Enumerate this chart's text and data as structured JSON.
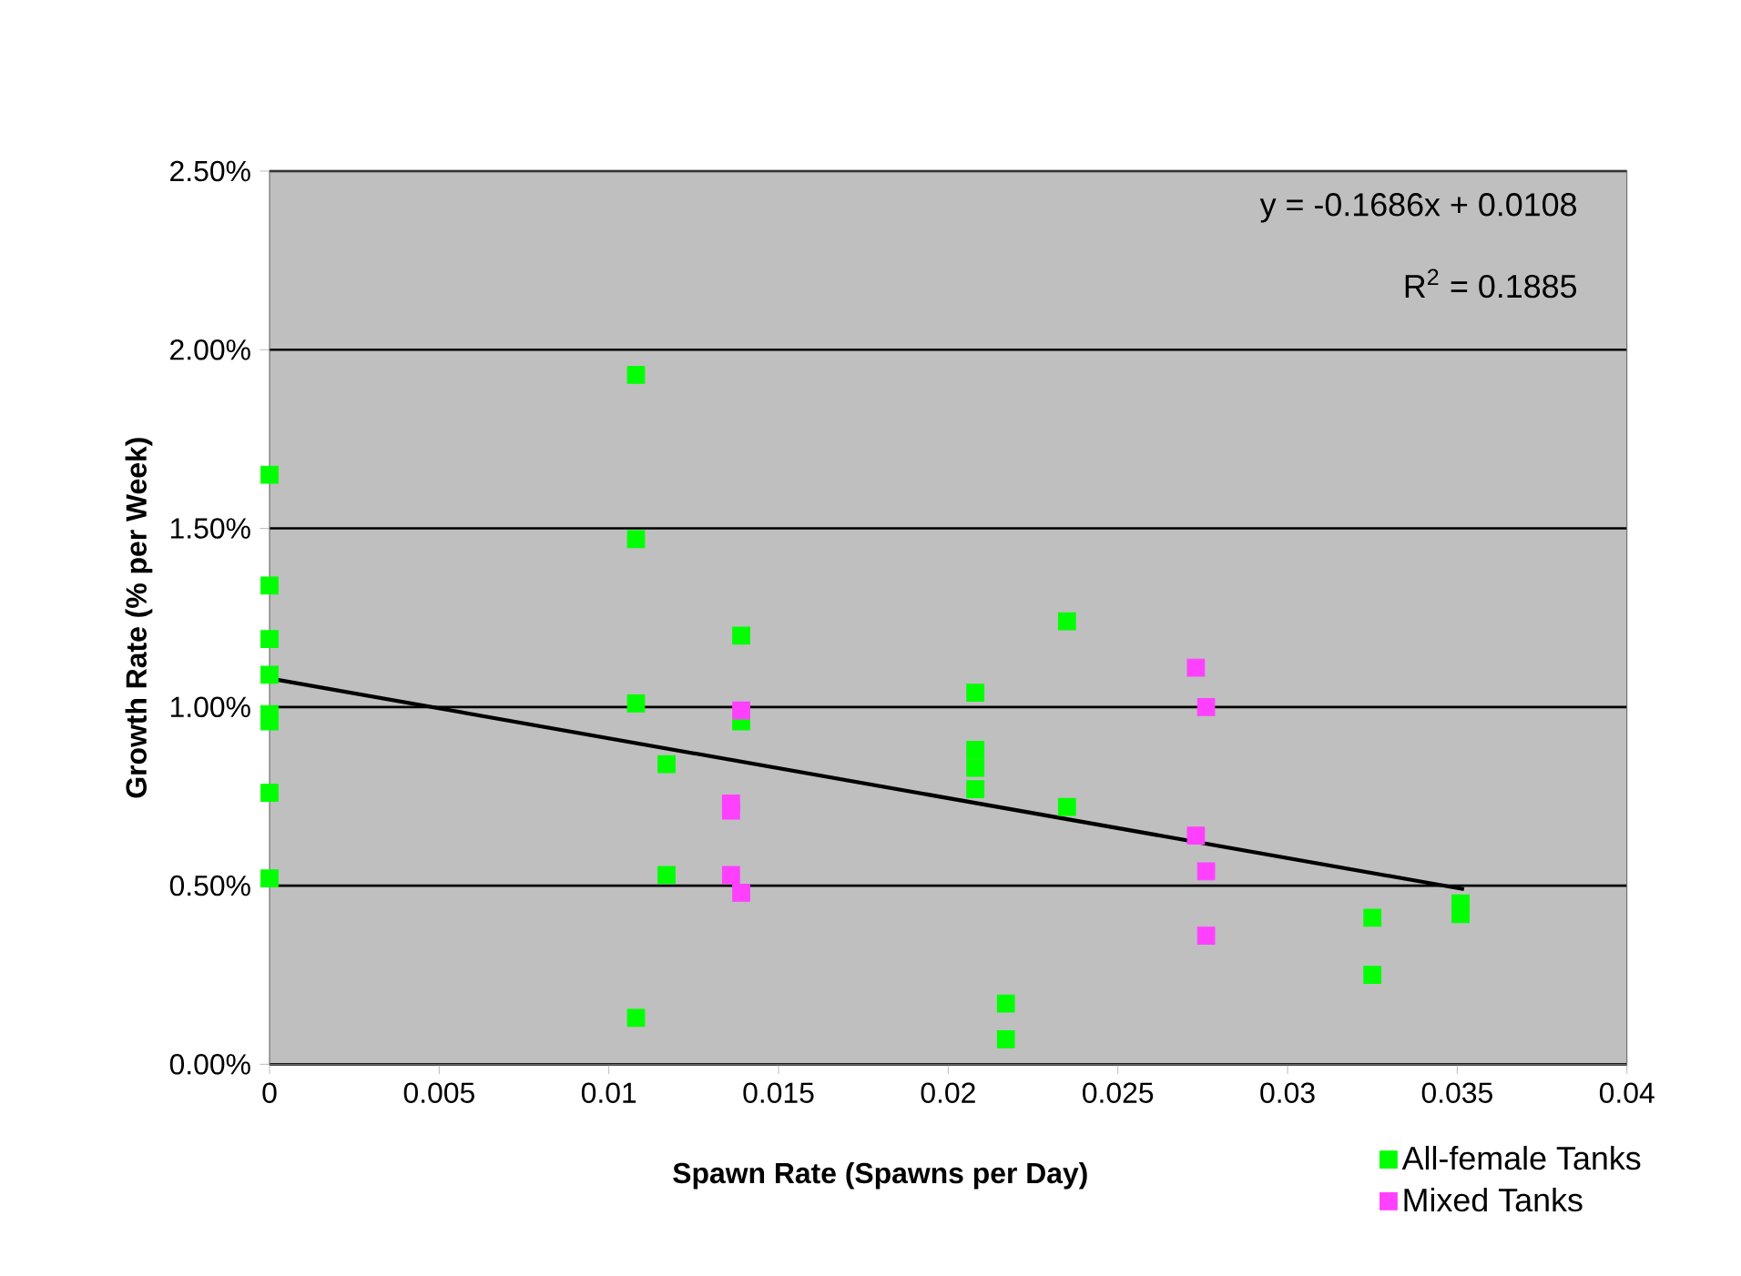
{
  "chart_data": {
    "type": "scatter",
    "xlabel": "Spawn Rate (Spawns per Day)",
    "ylabel": "Growth Rate (% per Week)",
    "annotations": [
      "y = -0.1686x + 0.0108",
      "R$^{2}$ = 0.1885"
    ],
    "xlim": [
      0,
      0.04
    ],
    "xticks": [
      0,
      0.005,
      0.01,
      0.015,
      0.02,
      0.025,
      0.03,
      0.035,
      0.04
    ],
    "ylim": [
      0,
      2.5
    ],
    "yticks": [
      {
        "value": 0,
        "label": "0.00%"
      },
      {
        "value": 0.5,
        "label": "0.50%"
      },
      {
        "value": 1,
        "label": "1.00%"
      },
      {
        "value": 1.5,
        "label": "1.50%"
      },
      {
        "value": 2,
        "label": "2.00%"
      },
      {
        "value": 2.5,
        "label": "2.50%"
      }
    ],
    "grid": "y",
    "legend": "bottom right",
    "marker": "square",
    "series": [
      {
        "name": "All-female Tanks",
        "color": "#00ff00",
        "x": [
          0,
          0,
          0,
          0,
          0,
          0,
          0,
          0,
          0.0108,
          0.0108,
          0.0108,
          0.0108,
          0.0117,
          0.0117,
          0.0139,
          0.0139,
          0.0208,
          0.0208,
          0.0208,
          0.0208,
          0.0217,
          0.0217,
          0.0235,
          0.0235,
          0.0325,
          0.0325,
          0.0351,
          0.0351
        ],
        "values": [
          1.65,
          1.34,
          1.19,
          1.09,
          0.98,
          0.96,
          0.76,
          0.52,
          1.93,
          1.47,
          1.01,
          0.13,
          0.84,
          0.53,
          1.2,
          0.96,
          1.04,
          0.88,
          0.83,
          0.77,
          0.17,
          0.07,
          1.24,
          0.72,
          0.41,
          0.25,
          0.45,
          0.42
        ]
      },
      {
        "name": "Mixed Tanks",
        "color": "#ff40ff",
        "x": [
          0.0139,
          0.0136,
          0.0136,
          0.0136,
          0.0139,
          0.0273,
          0.0273,
          0.0276,
          0.0276,
          0.0276
        ],
        "values": [
          0.99,
          0.73,
          0.71,
          0.53,
          0.48,
          1.11,
          0.64,
          1.0,
          0.54,
          0.36
        ]
      },
      {
        "type": "line",
        "marker": "none",
        "color": "#000000",
        "x": [
          0,
          0.0352
        ],
        "values": [
          1.08,
          0.49
        ]
      }
    ]
  }
}
